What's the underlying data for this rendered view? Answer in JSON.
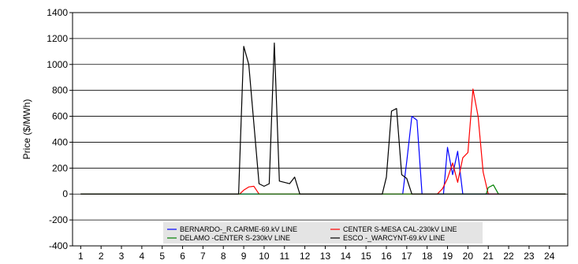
{
  "chart_data": {
    "type": "line",
    "title": "",
    "xlabel": "",
    "ylabel": "Price ($/MWh)",
    "xlim": [
      0.6,
      24.9
    ],
    "ylim": [
      -400,
      1400
    ],
    "x_ticks": [
      1,
      2,
      3,
      4,
      5,
      6,
      7,
      8,
      9,
      10,
      11,
      12,
      13,
      14,
      15,
      16,
      17,
      18,
      19,
      20,
      21,
      22,
      23,
      24
    ],
    "y_ticks": [
      -400,
      -200,
      0,
      200,
      400,
      600,
      800,
      1000,
      1200,
      1400
    ],
    "grid": "horizontal",
    "legend_position": "bottom-center",
    "series": [
      {
        "name": "BERNARDO-_R.CARME-69.kV LINE",
        "color": "#0000ff",
        "points": [
          [
            1,
            0
          ],
          [
            16.8,
            0
          ],
          [
            17,
            250
          ],
          [
            17.25,
            600
          ],
          [
            17.5,
            570
          ],
          [
            17.75,
            0
          ],
          [
            18.8,
            0
          ],
          [
            19,
            360
          ],
          [
            19.25,
            150
          ],
          [
            19.5,
            330
          ],
          [
            19.75,
            0
          ],
          [
            24.8,
            0
          ]
        ]
      },
      {
        "name": "CENTER S-MESA CAL-230kV LINE",
        "color": "#ff0000",
        "points": [
          [
            1,
            0
          ],
          [
            8.8,
            0
          ],
          [
            9,
            30
          ],
          [
            9.25,
            55
          ],
          [
            9.5,
            60
          ],
          [
            9.75,
            0
          ],
          [
            18.5,
            0
          ],
          [
            18.75,
            40
          ],
          [
            19,
            120
          ],
          [
            19.25,
            240
          ],
          [
            19.5,
            90
          ],
          [
            19.75,
            280
          ],
          [
            20,
            320
          ],
          [
            20.25,
            810
          ],
          [
            20.5,
            600
          ],
          [
            20.75,
            170
          ],
          [
            21,
            0
          ],
          [
            24.8,
            0
          ]
        ]
      },
      {
        "name": "DELAMO -CENTER S-230kV LINE",
        "color": "#008000",
        "points": [
          [
            1,
            0
          ],
          [
            20.9,
            0
          ],
          [
            21,
            50
          ],
          [
            21.25,
            70
          ],
          [
            21.5,
            0
          ],
          [
            24.8,
            0
          ]
        ]
      },
      {
        "name": "ESCO -_WARCYNT-69.kV LINE",
        "color": "#000000",
        "points": [
          [
            1,
            0
          ],
          [
            8.75,
            0
          ],
          [
            9,
            1140
          ],
          [
            9.25,
            1000
          ],
          [
            9.75,
            80
          ],
          [
            10,
            60
          ],
          [
            10.25,
            80
          ],
          [
            10.5,
            1165
          ],
          [
            10.75,
            100
          ],
          [
            11,
            90
          ],
          [
            11.25,
            80
          ],
          [
            11.5,
            130
          ],
          [
            11.75,
            0
          ],
          [
            15.8,
            0
          ],
          [
            16,
            130
          ],
          [
            16.25,
            640
          ],
          [
            16.5,
            660
          ],
          [
            16.75,
            150
          ],
          [
            17,
            120
          ],
          [
            17.25,
            0
          ],
          [
            24.8,
            0
          ]
        ]
      }
    ]
  }
}
